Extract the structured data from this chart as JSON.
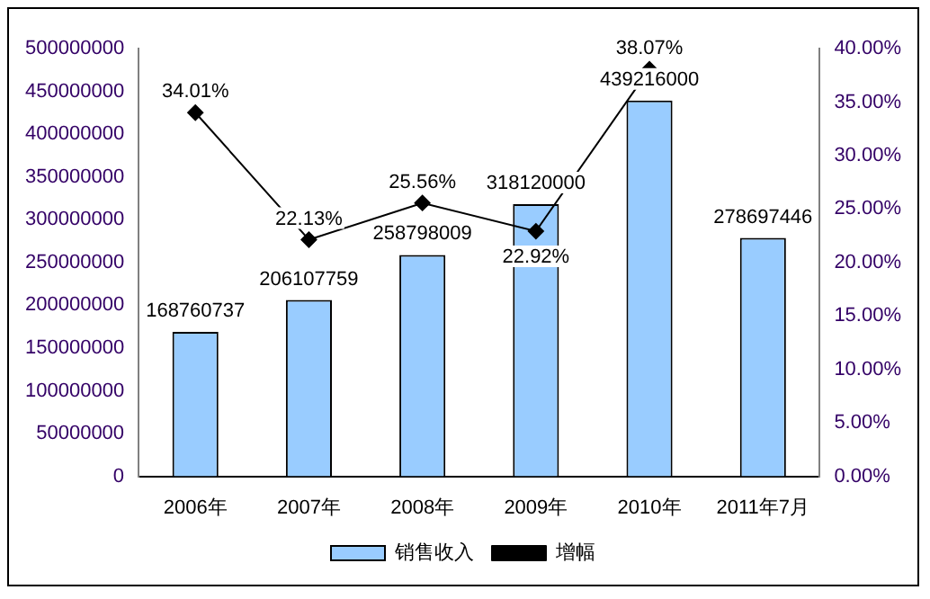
{
  "chart_data": {
    "type": "bar",
    "categories": [
      "2006年",
      "2007年",
      "2008年",
      "2009年",
      "2010年",
      "2011年7月"
    ],
    "series": [
      {
        "name": "销售收入",
        "color": "#99ccff",
        "values": [
          168760737,
          206107759,
          258798009,
          318120000,
          439216000,
          278697446
        ],
        "value_labels": [
          "168760737",
          "206107759",
          "258798009",
          "318120000",
          "439216000",
          "278697446"
        ]
      },
      {
        "name": "增幅",
        "type": "line",
        "axis": "y2",
        "color": "#000000",
        "marker": "diamond",
        "values": [
          34.01,
          22.13,
          25.56,
          22.92,
          38.07,
          null
        ],
        "value_labels": [
          "34.01%",
          "22.13%",
          "25.56%",
          "22.92%",
          "38.07%",
          null
        ]
      }
    ],
    "ylim": [
      0,
      500000000
    ],
    "yticks": [
      0,
      50000000,
      100000000,
      150000000,
      200000000,
      250000000,
      300000000,
      350000000,
      400000000,
      450000000,
      500000000
    ],
    "y2lim": [
      0,
      40
    ],
    "y2ticks": [
      {
        "value": 0,
        "label": "0.00%"
      },
      {
        "value": 5,
        "label": "5.00%"
      },
      {
        "value": 10,
        "label": "10.00%"
      },
      {
        "value": 15,
        "label": "15.00%"
      },
      {
        "value": 20,
        "label": "20.00%"
      },
      {
        "value": 25,
        "label": "25.00%"
      },
      {
        "value": 30,
        "label": "30.00%"
      },
      {
        "value": 35,
        "label": "35.00%"
      },
      {
        "value": 40,
        "label": "40.00%"
      }
    ],
    "grid": false,
    "legend": "bottom"
  }
}
